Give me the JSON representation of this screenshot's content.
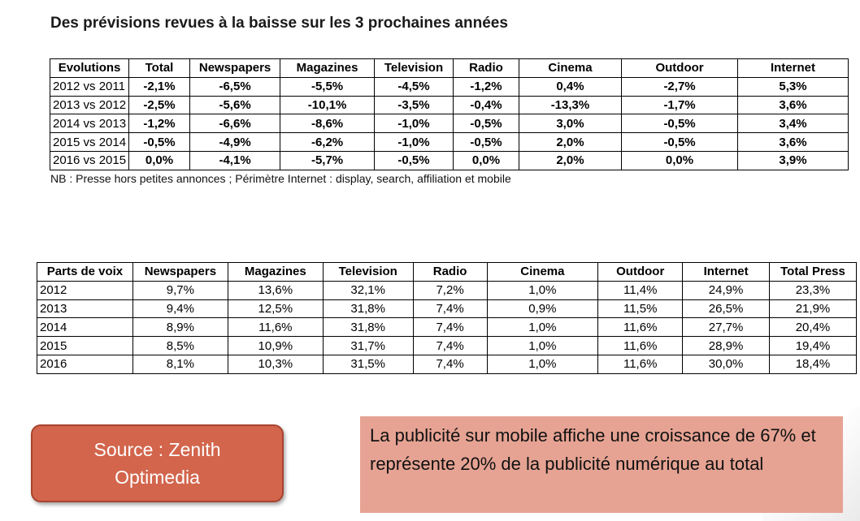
{
  "title": "Des prévisions revues à la baisse sur les 3 prochaines années",
  "table1": {
    "headers": [
      "Evolutions",
      "Total",
      "Newspapers",
      "Magazines",
      "Television",
      "Radio",
      "Cinema",
      "Outdoor",
      "Internet"
    ],
    "rows": [
      [
        "2012 vs 2011",
        "-2,1%",
        "-6,5%",
        "-5,5%",
        "-4,5%",
        "-1,2%",
        "0,4%",
        "-2,7%",
        "5,3%"
      ],
      [
        "2013 vs 2012",
        "-2,5%",
        "-5,6%",
        "-10,1%",
        "-3,5%",
        "-0,4%",
        "-13,3%",
        "-1,7%",
        "3,6%"
      ],
      [
        "2014 vs 2013",
        "-1,2%",
        "-6,6%",
        "-8,6%",
        "-1,0%",
        "-0,5%",
        "3,0%",
        "-0,5%",
        "3,4%"
      ],
      [
        "2015 vs 2014",
        "-0,5%",
        "-4,9%",
        "-6,2%",
        "-1,0%",
        "-0,5%",
        "2,0%",
        "-0,5%",
        "3,6%"
      ],
      [
        "2016 vs 2015",
        "0,0%",
        "-4,1%",
        "-5,7%",
        "-0,5%",
        "0,0%",
        "2,0%",
        "0,0%",
        "3,9%"
      ]
    ]
  },
  "note": "NB : Presse hors petites annonces ; Périmètre Internet : display, search, affiliation et mobile",
  "table2": {
    "headers": [
      "Parts de voix",
      "Newspapers",
      "Magazines",
      "Television",
      "Radio",
      "Cinema",
      "Outdoor",
      "Internet",
      "Total Press"
    ],
    "rows": [
      [
        "2012",
        "9,7%",
        "13,6%",
        "32,1%",
        "7,2%",
        "1,0%",
        "11,4%",
        "24,9%",
        "23,3%"
      ],
      [
        "2013",
        "9,4%",
        "12,5%",
        "31,8%",
        "7,4%",
        "0,9%",
        "11,5%",
        "26,5%",
        "21,9%"
      ],
      [
        "2014",
        "8,9%",
        "11,6%",
        "31,8%",
        "7,4%",
        "1,0%",
        "11,6%",
        "27,7%",
        "20,4%"
      ],
      [
        "2015",
        "8,5%",
        "10,9%",
        "31,7%",
        "7,4%",
        "1,0%",
        "11,6%",
        "28,9%",
        "19,4%"
      ],
      [
        "2016",
        "8,1%",
        "10,3%",
        "31,5%",
        "7,4%",
        "1,0%",
        "11,6%",
        "30,0%",
        "18,4%"
      ]
    ]
  },
  "source_box": "Source : Zenith Optimedia",
  "callout": "La publicité sur mobile affiche une croissance de 67% et représente 20% de la publicité numérique au total",
  "colors": {
    "source_box_fill": "#d2654c",
    "callout_fill": "#e6a393"
  }
}
